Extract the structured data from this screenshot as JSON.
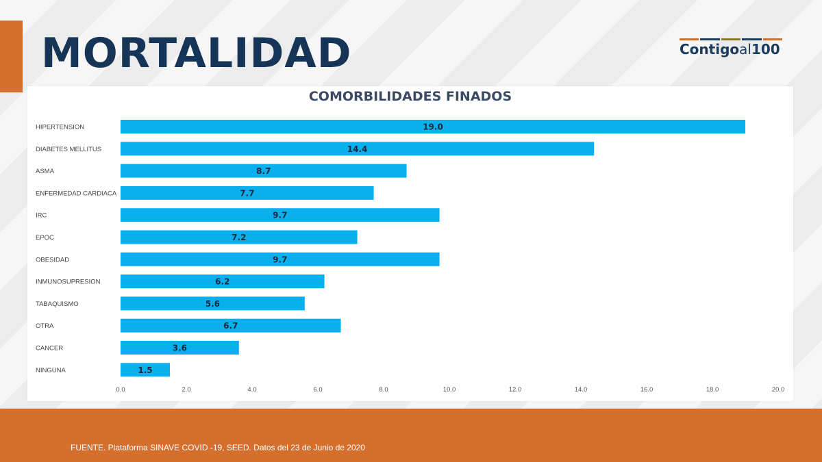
{
  "header": {
    "title": "MORTALIDAD",
    "logo": {
      "text_main": "Contigo",
      "text_suffix": "al",
      "text_number": "100"
    }
  },
  "colors": {
    "accent": "#d46f2e",
    "title": "#153456",
    "bar": "#0ab0ee",
    "bar_label": "#1a2a3a",
    "logo_bars": [
      "#d46f2e",
      "#1b3a5c",
      "#8a7a2c",
      "#1b3a5c",
      "#d46f2e"
    ]
  },
  "chart_data": {
    "type": "bar",
    "orientation": "horizontal",
    "title": "COMORBILIDADES FINADOS",
    "xlabel": "",
    "ylabel": "",
    "categories": [
      "HIPERTENSION",
      "DIABETES MELLITUS",
      "ASMA",
      "ENFERMEDAD CARDIACA",
      "IRC",
      "EPOC",
      "OBESIDAD",
      "INMUNOSUPRESION",
      "TABAQUISMO",
      "OTRA",
      "CANCER",
      "NINGUNA"
    ],
    "values": [
      19.0,
      14.4,
      8.7,
      7.7,
      9.7,
      7.2,
      9.7,
      6.2,
      5.6,
      6.7,
      3.6,
      1.5
    ],
    "value_labels": [
      "19.0",
      "14.4",
      "8.7",
      "7.7",
      "9.7",
      "7.2",
      "9.7",
      "6.2",
      "5.6",
      "6.7",
      "3.6",
      "1.5"
    ],
    "xlim": [
      0,
      20
    ],
    "xticks": [
      "0.0",
      "2.0",
      "4.0",
      "6.0",
      "8.0",
      "10.0",
      "12.0",
      "14.0",
      "16.0",
      "18.0",
      "20.0"
    ],
    "grid": false,
    "legend": "none"
  },
  "footer": {
    "source": "FUENTE. Plataforma SINAVE COVID -19, SEED. Datos del 23 de Junio de 2020"
  }
}
